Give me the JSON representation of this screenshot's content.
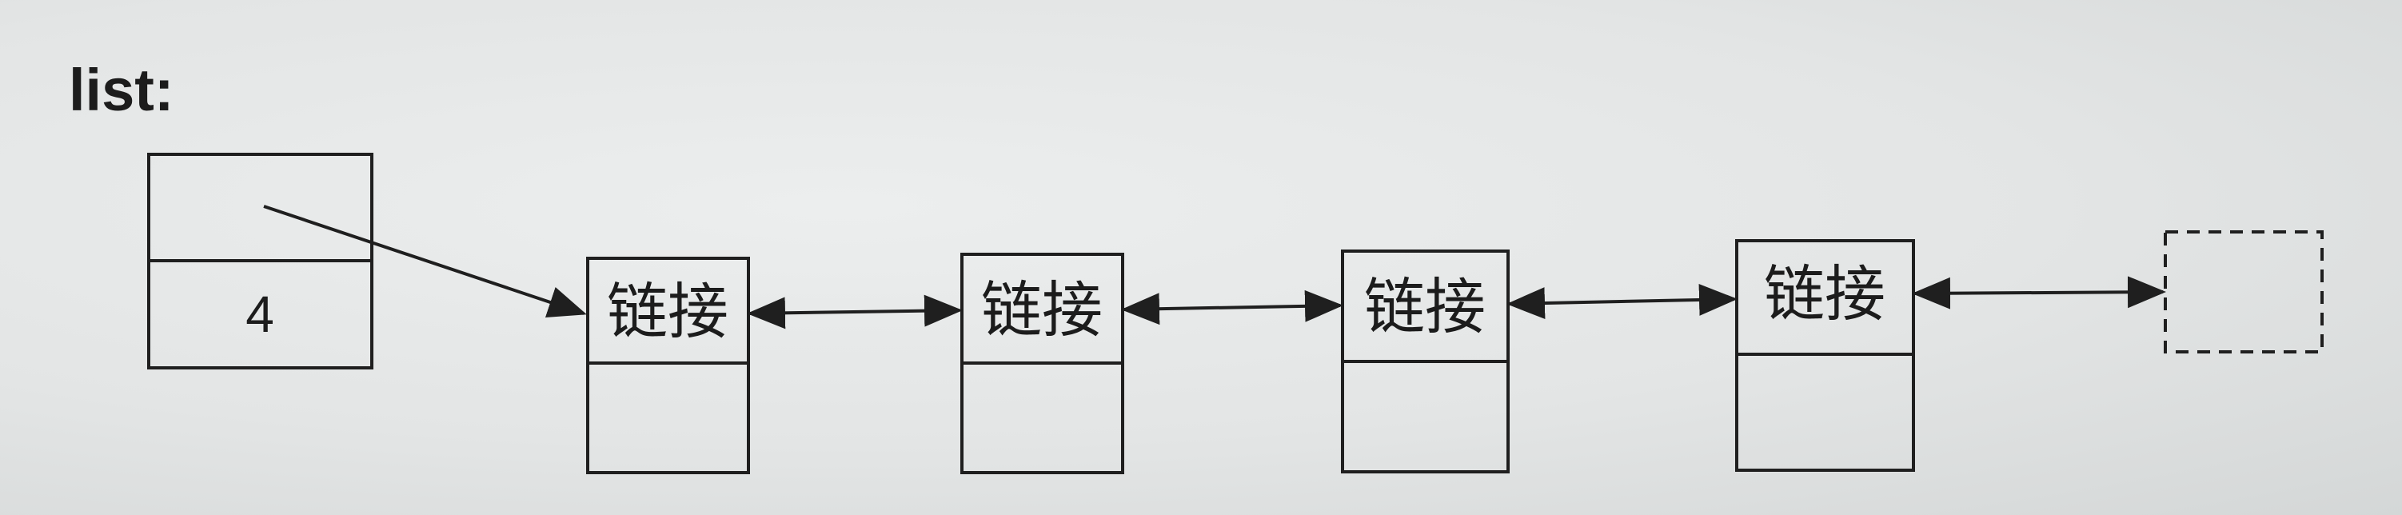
{
  "diagram": {
    "title": "list",
    "title_suffix": ":",
    "header": {
      "count_value": "4"
    },
    "nodes": [
      {
        "label": "链接"
      },
      {
        "label": "链接"
      },
      {
        "label": "链接"
      },
      {
        "label": "链接"
      }
    ],
    "colors": {
      "ink": "#1f1f1f",
      "paper": "#e4e6e6"
    }
  }
}
